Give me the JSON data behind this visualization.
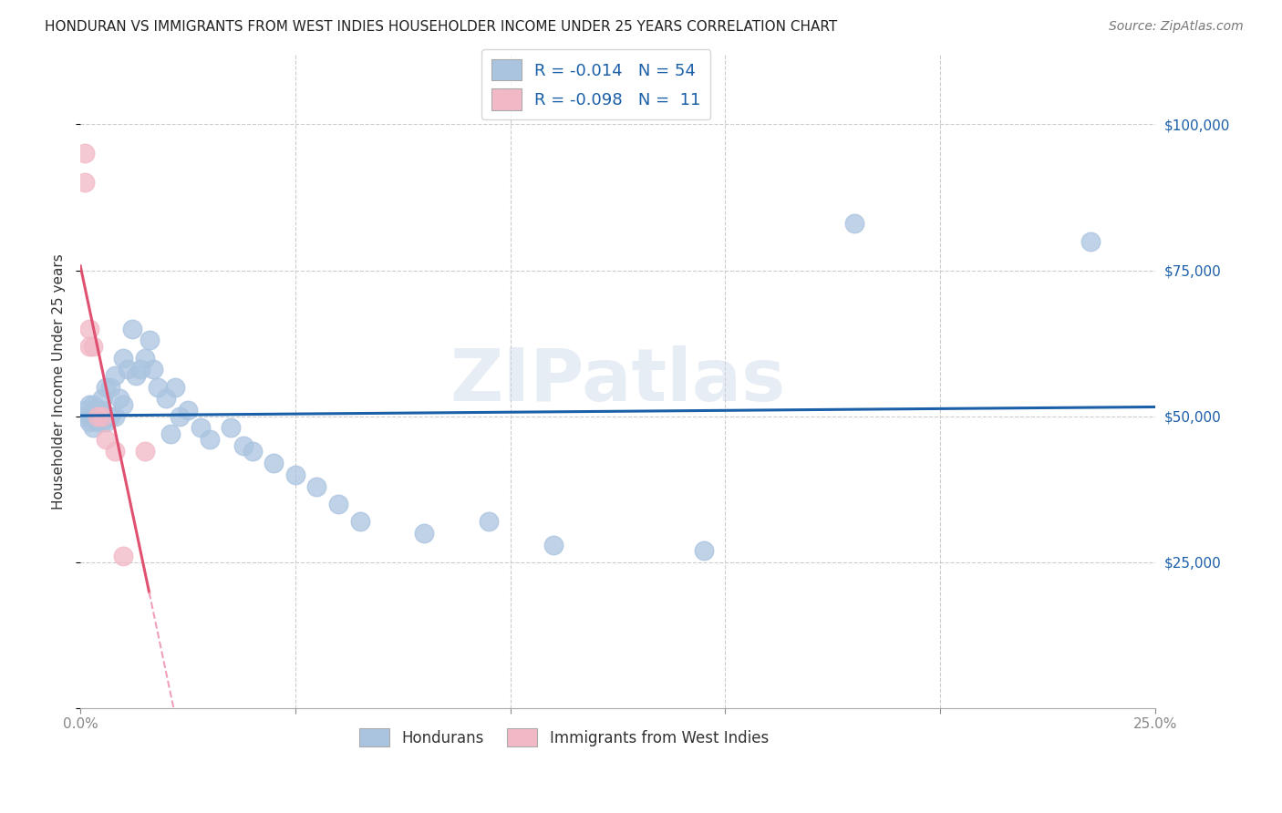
{
  "title": "HONDURAN VS IMMIGRANTS FROM WEST INDIES HOUSEHOLDER INCOME UNDER 25 YEARS CORRELATION CHART",
  "source": "Source: ZipAtlas.com",
  "ylabel": "Householder Income Under 25 years",
  "xlim": [
    0,
    0.25
  ],
  "ylim": [
    0,
    112000
  ],
  "yticks": [
    0,
    25000,
    50000,
    75000,
    100000
  ],
  "ytick_labels_right": [
    "",
    "$25,000",
    "$50,000",
    "$75,000",
    "$100,000"
  ],
  "xticks": [
    0.0,
    0.05,
    0.1,
    0.15,
    0.2,
    0.25
  ],
  "xtick_labels": [
    "0.0%",
    "",
    "",
    "",
    "",
    "25.0%"
  ],
  "grid_color": "#cccccc",
  "background_color": "#ffffff",
  "watermark": "ZIPatlas",
  "hondurans_color": "#aac4e0",
  "west_indies_color": "#f2b8c6",
  "line_hondurans_color": "#1a5fa8",
  "line_west_indies_solid_color": "#e05070",
  "line_west_indies_dash_color": "#f0a0b8",
  "hondurans_x": [
    0.001,
    0.001,
    0.002,
    0.002,
    0.002,
    0.003,
    0.003,
    0.003,
    0.003,
    0.004,
    0.004,
    0.004,
    0.005,
    0.005,
    0.005,
    0.005,
    0.006,
    0.006,
    0.007,
    0.007,
    0.008,
    0.008,
    0.009,
    0.01,
    0.01,
    0.011,
    0.012,
    0.013,
    0.014,
    0.015,
    0.016,
    0.017,
    0.018,
    0.02,
    0.021,
    0.022,
    0.023,
    0.025,
    0.028,
    0.03,
    0.035,
    0.038,
    0.04,
    0.045,
    0.05,
    0.055,
    0.06,
    0.065,
    0.08,
    0.095,
    0.11,
    0.145,
    0.18,
    0.235
  ],
  "hondurans_y": [
    50000,
    51000,
    50000,
    52000,
    49000,
    51000,
    50000,
    52000,
    48000,
    51000,
    50000,
    49000,
    53000,
    50000,
    49000,
    51000,
    55000,
    49000,
    55000,
    50000,
    57000,
    50000,
    53000,
    60000,
    52000,
    58000,
    65000,
    57000,
    58000,
    60000,
    63000,
    58000,
    55000,
    53000,
    47000,
    55000,
    50000,
    51000,
    48000,
    46000,
    48000,
    45000,
    44000,
    42000,
    40000,
    38000,
    35000,
    32000,
    30000,
    32000,
    28000,
    27000,
    83000,
    80000
  ],
  "west_indies_x": [
    0.001,
    0.001,
    0.002,
    0.002,
    0.003,
    0.004,
    0.005,
    0.006,
    0.008,
    0.01,
    0.015
  ],
  "west_indies_y": [
    90000,
    95000,
    65000,
    62000,
    62000,
    50000,
    50000,
    46000,
    44000,
    26000,
    44000
  ],
  "legend1_text": "R = -0.014   N = 54",
  "legend2_text": "R = -0.098   N =  11",
  "legend_label1": "Hondurans",
  "legend_label2": "Immigrants from West Indies"
}
